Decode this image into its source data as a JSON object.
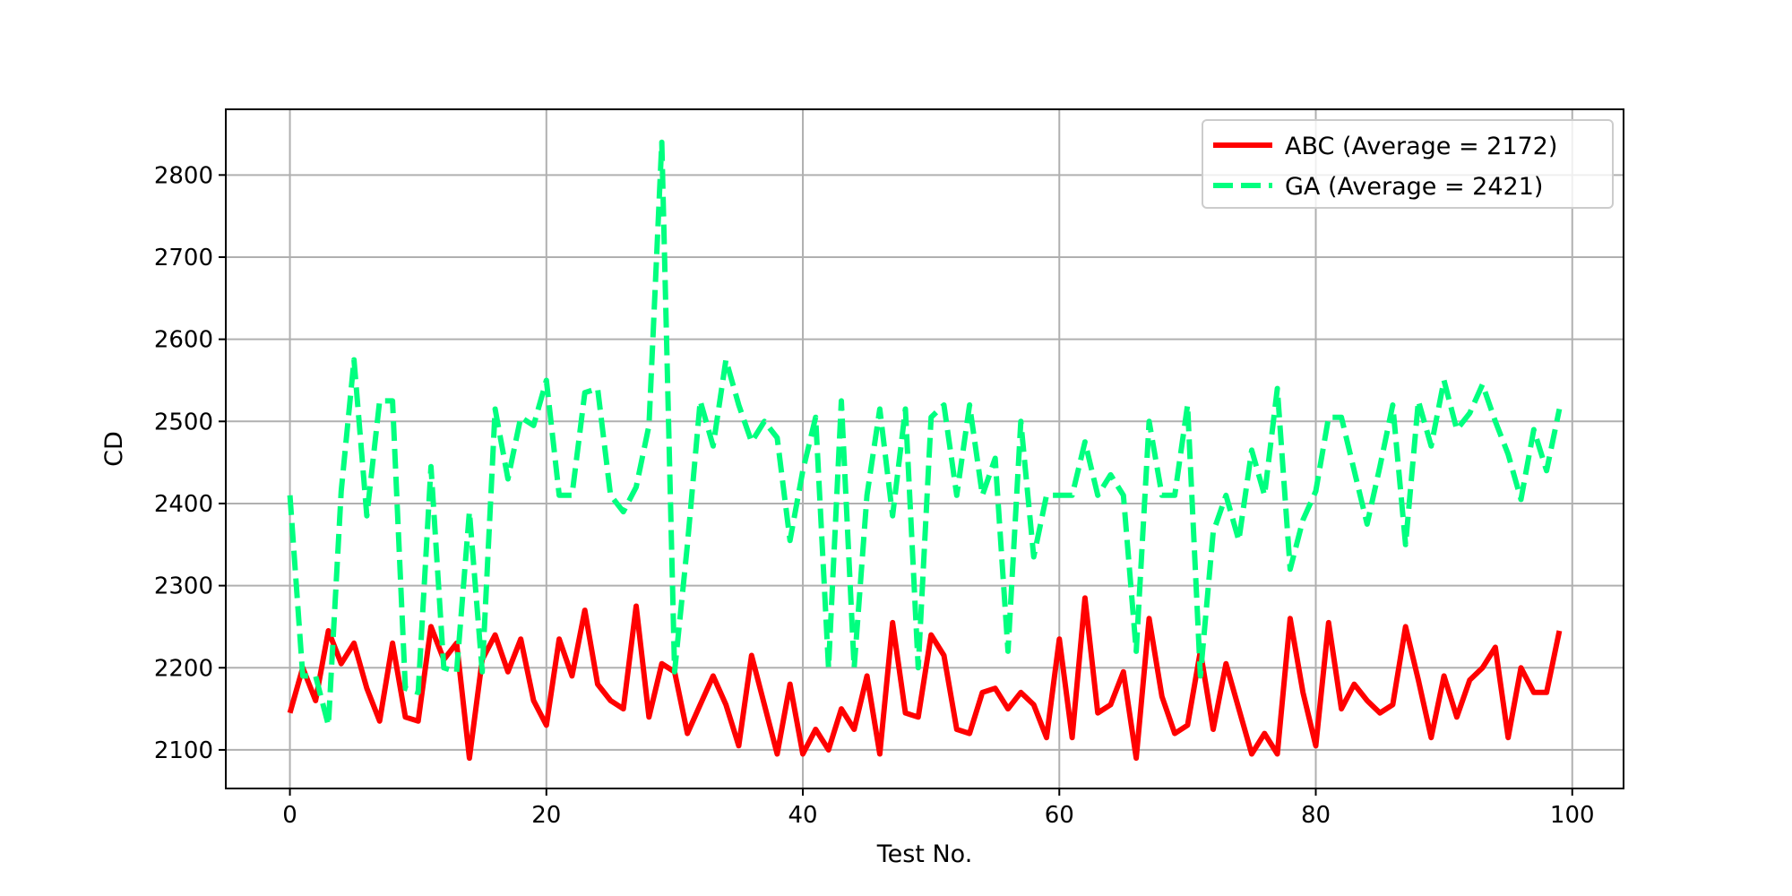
{
  "chart_data": {
    "type": "line",
    "xlabel": "Test No.",
    "ylabel": "CD",
    "xlim": [
      -5,
      104
    ],
    "ylim": [
      2053,
      2880
    ],
    "xticks": [
      0,
      20,
      40,
      60,
      80,
      100
    ],
    "yticks": [
      2100,
      2200,
      2300,
      2400,
      2500,
      2600,
      2700,
      2800
    ],
    "grid": true,
    "legend_position": "top-right",
    "series": [
      {
        "name": "ABC (Average = 2172)",
        "color": "#ff0000",
        "line_style": "solid",
        "x": [
          0,
          1,
          2,
          3,
          4,
          5,
          6,
          7,
          8,
          9,
          10,
          11,
          12,
          13,
          14,
          15,
          16,
          17,
          18,
          19,
          20,
          21,
          22,
          23,
          24,
          25,
          26,
          27,
          28,
          29,
          30,
          31,
          32,
          33,
          34,
          35,
          36,
          37,
          38,
          39,
          40,
          41,
          42,
          43,
          44,
          45,
          46,
          47,
          48,
          49,
          50,
          51,
          52,
          53,
          54,
          55,
          56,
          57,
          58,
          59,
          60,
          61,
          62,
          63,
          64,
          65,
          66,
          67,
          68,
          69,
          70,
          71,
          72,
          73,
          74,
          75,
          76,
          77,
          78,
          79,
          80,
          81,
          82,
          83,
          84,
          85,
          86,
          87,
          88,
          89,
          90,
          91,
          92,
          93,
          94,
          95,
          96,
          97,
          98,
          99
        ],
        "values": [
          2145,
          2200,
          2160,
          2245,
          2205,
          2230,
          2175,
          2135,
          2230,
          2140,
          2135,
          2250,
          2210,
          2230,
          2090,
          2210,
          2240,
          2195,
          2235,
          2160,
          2130,
          2235,
          2190,
          2270,
          2180,
          2160,
          2150,
          2275,
          2140,
          2205,
          2195,
          2120,
          2155,
          2190,
          2155,
          2105,
          2215,
          2155,
          2095,
          2180,
          2095,
          2125,
          2100,
          2150,
          2125,
          2190,
          2095,
          2255,
          2145,
          2140,
          2240,
          2215,
          2125,
          2120,
          2170,
          2175,
          2150,
          2170,
          2155,
          2115,
          2235,
          2115,
          2285,
          2145,
          2155,
          2195,
          2090,
          2260,
          2165,
          2120,
          2130,
          2220,
          2125,
          2205,
          2150,
          2095,
          2120,
          2095,
          2260,
          2170,
          2105,
          2255,
          2150,
          2180,
          2160,
          2145,
          2155,
          2250,
          2185,
          2115,
          2190,
          2140,
          2185,
          2200,
          2225,
          2115,
          2200,
          2170,
          2170,
          2245
        ]
      },
      {
        "name": "GA (Average = 2421)",
        "color": "#00ff7f",
        "line_style": "dashed",
        "x": [
          0,
          1,
          2,
          3,
          4,
          5,
          6,
          7,
          8,
          9,
          10,
          11,
          12,
          13,
          14,
          15,
          16,
          17,
          18,
          19,
          20,
          21,
          22,
          23,
          24,
          25,
          26,
          27,
          28,
          29,
          30,
          31,
          32,
          33,
          34,
          35,
          36,
          37,
          38,
          39,
          40,
          41,
          42,
          43,
          44,
          45,
          46,
          47,
          48,
          49,
          50,
          51,
          52,
          53,
          54,
          55,
          56,
          57,
          58,
          59,
          60,
          61,
          62,
          63,
          64,
          65,
          66,
          67,
          68,
          69,
          70,
          71,
          72,
          73,
          74,
          75,
          76,
          77,
          78,
          79,
          80,
          81,
          82,
          83,
          84,
          85,
          86,
          87,
          88,
          89,
          90,
          91,
          92,
          93,
          94,
          95,
          96,
          97,
          98,
          99
        ],
        "values": [
          2410,
          2190,
          2190,
          2130,
          2415,
          2575,
          2385,
          2525,
          2525,
          2175,
          2170,
          2445,
          2200,
          2195,
          2390,
          2195,
          2515,
          2430,
          2505,
          2495,
          2550,
          2410,
          2410,
          2535,
          2540,
          2410,
          2390,
          2420,
          2495,
          2840,
          2195,
          2350,
          2525,
          2470,
          2575,
          2520,
          2475,
          2500,
          2480,
          2355,
          2440,
          2505,
          2200,
          2525,
          2200,
          2410,
          2515,
          2385,
          2515,
          2200,
          2505,
          2520,
          2410,
          2520,
          2410,
          2455,
          2220,
          2500,
          2335,
          2410,
          2410,
          2410,
          2475,
          2410,
          2435,
          2410,
          2220,
          2500,
          2410,
          2410,
          2520,
          2190,
          2365,
          2410,
          2355,
          2465,
          2410,
          2540,
          2320,
          2380,
          2415,
          2505,
          2505,
          2440,
          2375,
          2445,
          2520,
          2350,
          2525,
          2470,
          2550,
          2490,
          2510,
          2545,
          2500,
          2460,
          2405,
          2490,
          2440,
          2515
        ]
      }
    ]
  }
}
